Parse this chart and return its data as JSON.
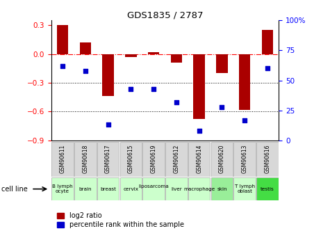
{
  "title": "GDS1835 / 2787",
  "samples": [
    "GSM90611",
    "GSM90618",
    "GSM90617",
    "GSM90615",
    "GSM90619",
    "GSM90612",
    "GSM90614",
    "GSM90620",
    "GSM90613",
    "GSM90616"
  ],
  "cell_types": [
    "B lymph\nocyte",
    "brain",
    "breast",
    "cervix",
    "liposarcoma\n",
    "liver",
    "macrophage",
    "skin",
    "T lymph\noblast",
    "testis"
  ],
  "cell_colors": [
    "#ccffcc",
    "#ccffcc",
    "#ccffcc",
    "#ccffcc",
    "#ccffcc",
    "#ccffcc",
    "#ccffcc",
    "#99ee99",
    "#ccffcc",
    "#44dd44"
  ],
  "log2_ratio": [
    0.3,
    0.12,
    -0.44,
    -0.03,
    0.02,
    -0.09,
    -0.68,
    -0.2,
    -0.58,
    0.25
  ],
  "percentile_rank": [
    62,
    58,
    13,
    43,
    43,
    32,
    8,
    28,
    17,
    60
  ],
  "ylim_left": [
    -0.9,
    0.35
  ],
  "ylim_right": [
    0,
    100
  ],
  "yticks_left": [
    -0.9,
    -0.6,
    -0.3,
    0.0,
    0.3
  ],
  "yticks_right": [
    0,
    25,
    50,
    75,
    100
  ],
  "bar_color": "#aa0000",
  "dot_color": "#0000cc",
  "dotted_lines": [
    -0.3,
    -0.6
  ],
  "legend_red_label": "log2 ratio",
  "legend_blue_label": "percentile rank within the sample",
  "cell_line_label": "cell line"
}
